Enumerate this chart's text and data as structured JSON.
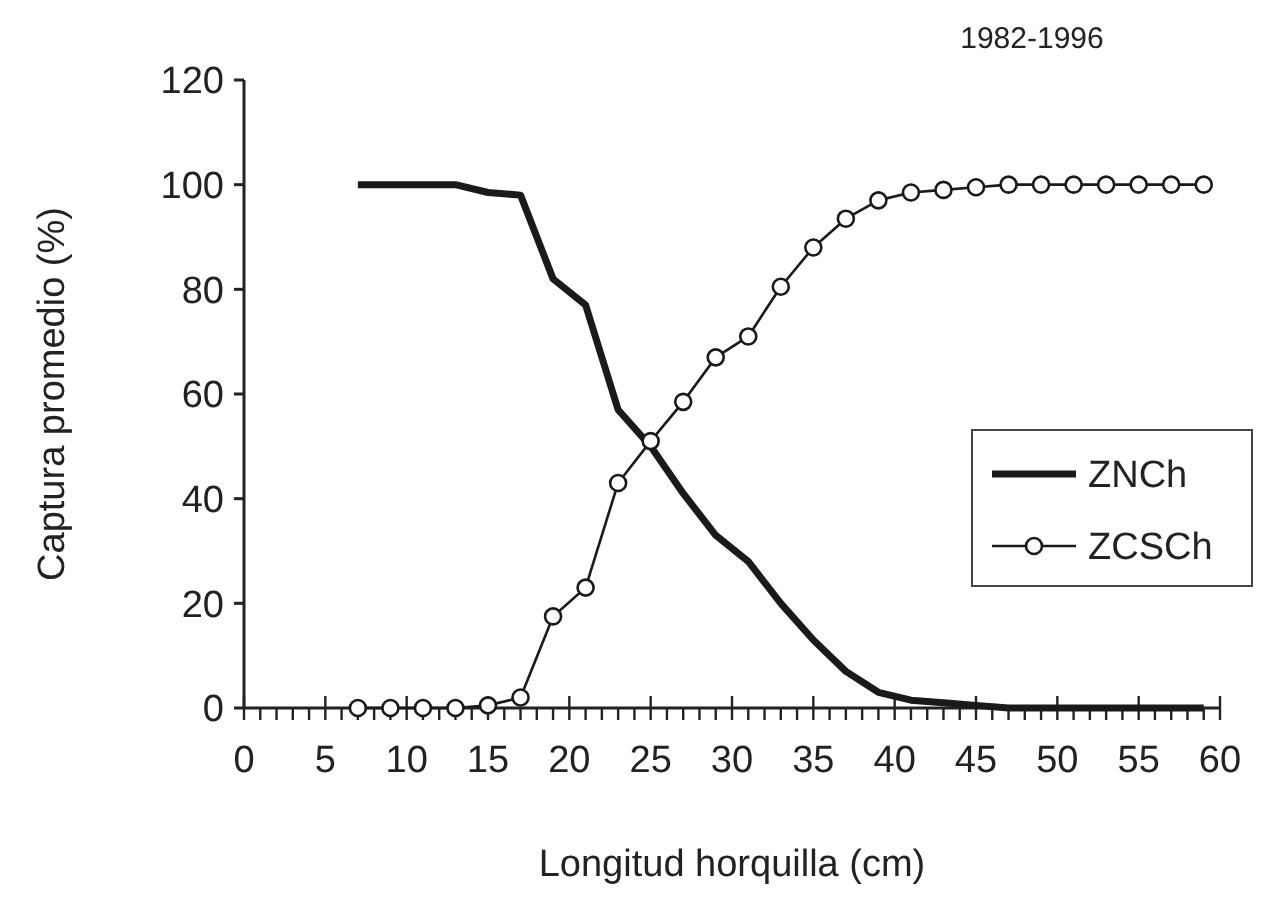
{
  "chart_data": {
    "type": "line",
    "title": "1982-1996",
    "xlabel": "Longitud horquilla (cm)",
    "ylabel": "Captura promedio (%)",
    "x": [
      7,
      9,
      11,
      13,
      15,
      17,
      19,
      21,
      23,
      25,
      27,
      29,
      31,
      33,
      35,
      37,
      39,
      41,
      43,
      45,
      47,
      49,
      51,
      53,
      55,
      57,
      59
    ],
    "series": [
      {
        "name": "ZNCh",
        "color": "#1a1a1a",
        "marker": "none",
        "values": [
          100,
          100,
          100,
          100,
          98.5,
          98,
          82,
          77,
          57,
          50,
          41,
          33,
          28,
          20,
          13,
          7,
          3,
          1.5,
          1,
          0.5,
          0,
          0,
          0,
          0,
          0,
          0,
          0
        ]
      },
      {
        "name": "ZCSCh",
        "color": "#1a1a1a",
        "marker": "circle",
        "values": [
          0,
          0,
          0,
          0,
          0.5,
          2,
          17.5,
          23,
          43,
          51,
          58.5,
          67,
          71,
          80.5,
          88,
          93.5,
          97,
          98.5,
          99,
          99.5,
          100,
          100,
          100,
          100,
          100,
          100,
          100
        ]
      }
    ],
    "xlim": [
      0,
      60
    ],
    "xticks": [
      0,
      {
        "value": 1,
        "label": null
      },
      {
        "value": 2,
        "label": null
      },
      {
        "value": 3,
        "label": null
      },
      {
        "value": 4,
        "label": null
      },
      5,
      {
        "value": 6,
        "label": null
      },
      {
        "value": 7,
        "label": null
      },
      {
        "value": 8,
        "label": null
      },
      {
        "value": 9,
        "label": null
      },
      10,
      {
        "value": 11,
        "label": null
      },
      {
        "value": 12,
        "label": null
      },
      {
        "value": 13,
        "label": null
      },
      {
        "value": 14,
        "label": null
      },
      15,
      {
        "value": 16,
        "label": null
      },
      {
        "value": 17,
        "label": null
      },
      {
        "value": 18,
        "label": null
      },
      {
        "value": 19,
        "label": null
      },
      20,
      {
        "value": 21,
        "label": null
      },
      {
        "value": 22,
        "label": null
      },
      {
        "value": 23,
        "label": null
      },
      {
        "value": 24,
        "label": null
      },
      25,
      {
        "value": 26,
        "label": null
      },
      {
        "value": 27,
        "label": null
      },
      {
        "value": 28,
        "label": null
      },
      {
        "value": 29,
        "label": null
      },
      30,
      {
        "value": 31,
        "label": null
      },
      {
        "value": 32,
        "label": null
      },
      {
        "value": 33,
        "label": null
      },
      {
        "value": 34,
        "label": null
      },
      35,
      {
        "value": 36,
        "label": null
      },
      {
        "value": 37,
        "label": null
      },
      {
        "value": 38,
        "label": null
      },
      {
        "value": 39,
        "label": null
      },
      40,
      {
        "value": 41,
        "label": null
      },
      {
        "value": 42,
        "label": null
      },
      {
        "value": 43,
        "label": null
      },
      {
        "value": 44,
        "label": null
      },
      45,
      {
        "value": 46,
        "label": null
      },
      {
        "value": 47,
        "label": null
      },
      {
        "value": 48,
        "label": null
      },
      {
        "value": 49,
        "label": null
      },
      50,
      {
        "value": 51,
        "label": null
      },
      {
        "value": 52,
        "label": null
      },
      {
        "value": 53,
        "label": null
      },
      {
        "value": 54,
        "label": null
      },
      55,
      {
        "value": 56,
        "label": null
      },
      {
        "value": 57,
        "label": null
      },
      {
        "value": 58,
        "label": null
      },
      {
        "value": 59,
        "label": null
      },
      60
    ],
    "ylim": [
      0,
      120
    ],
    "yticks": [
      0,
      20,
      40,
      60,
      80,
      100,
      120
    ],
    "grid": false,
    "legend": "right",
    "line_style": "solid"
  }
}
